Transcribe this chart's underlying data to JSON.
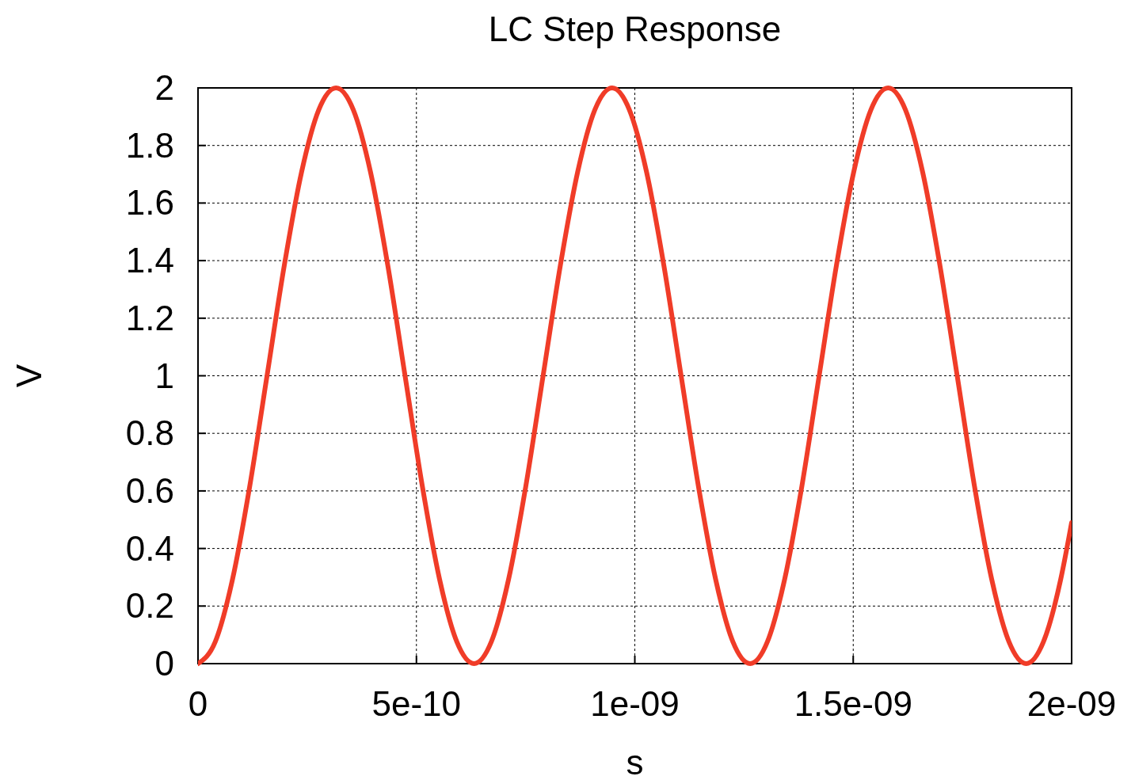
{
  "chart_data": {
    "type": "line",
    "title": "LC Step Response",
    "xlabel": "s",
    "ylabel": "V",
    "x": [
      0,
      3.95e-11,
      7.9e-11,
      1.185e-10,
      1.58e-10,
      1.975e-10,
      2.37e-10,
      2.765e-10,
      3.16e-10,
      3.555e-10,
      3.95e-10,
      4.345e-10,
      4.74e-10,
      5.135e-10,
      5.53e-10,
      5.925e-10,
      6.32e-10,
      6.715e-10,
      7.11e-10,
      7.505e-10,
      7.9e-10,
      8.295e-10,
      8.69e-10,
      9.085e-10,
      9.48e-10,
      9.875e-10,
      1.027e-09,
      1.0665e-09,
      1.106e-09,
      1.1455e-09,
      1.185e-09,
      1.2245e-09,
      1.264e-09,
      1.3035e-09,
      1.343e-09,
      1.3825e-09,
      1.422e-09,
      1.4615e-09,
      1.501e-09,
      1.5405e-09,
      1.58e-09,
      1.6195e-09,
      1.659e-09,
      1.6985e-09,
      1.738e-09,
      1.7775e-09,
      1.817e-09,
      1.8565e-09,
      1.896e-09,
      1.9355e-09,
      1.975e-09,
      2e-09
    ],
    "series": [
      {
        "color": "#f03c28",
        "values": [
          0,
          0.076,
          0.293,
          0.617,
          1,
          1.383,
          1.707,
          1.924,
          2,
          1.924,
          1.707,
          1.383,
          1,
          0.617,
          0.293,
          0.076,
          0,
          0.076,
          0.293,
          0.617,
          1,
          1.383,
          1.707,
          1.924,
          2,
          1.924,
          1.707,
          1.383,
          1,
          0.617,
          0.293,
          0.076,
          0,
          0.076,
          0.293,
          0.617,
          1,
          1.383,
          1.707,
          1.924,
          2,
          1.924,
          1.707,
          1.383,
          1,
          0.617,
          0.293,
          0.076,
          0,
          0.076,
          0.293,
          0.49
        ]
      }
    ],
    "xlim": [
      0,
      2e-09
    ],
    "xticks": [
      0,
      {
        "value": 5e-10,
        "label": "5e-10"
      },
      {
        "value": 1e-09,
        "label": "1e-09"
      },
      {
        "value": 1.5e-09,
        "label": "1.5e-09"
      },
      {
        "value": 2e-09,
        "label": "2e-09"
      }
    ],
    "ylim": [
      0,
      2
    ],
    "yticks": [
      0,
      0.2,
      0.4,
      0.6,
      0.8,
      1,
      1.2,
      1.4,
      1.6,
      1.8,
      2
    ],
    "grid": true,
    "marker": "none",
    "line_style": "solid"
  }
}
